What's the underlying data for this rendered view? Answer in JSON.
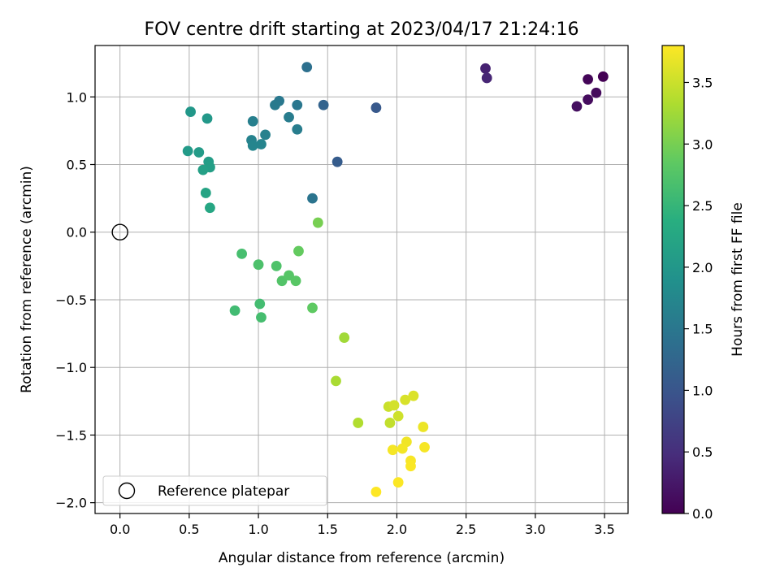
{
  "chart_data": {
    "type": "scatter",
    "title": "FOV centre drift starting at 2023/04/17 21:24:16",
    "xlabel": "Angular distance from reference (arcmin)",
    "ylabel": "Rotation from reference (arcmin)",
    "xlim": [
      -0.18,
      3.67
    ],
    "ylim": [
      -2.08,
      1.38
    ],
    "xticks": [
      0.0,
      0.5,
      1.0,
      1.5,
      2.0,
      2.5,
      3.0,
      3.5
    ],
    "xtick_labels": [
      "0.0",
      "0.5",
      "1.0",
      "1.5",
      "2.0",
      "2.5",
      "3.0",
      "3.5"
    ],
    "yticks": [
      1.0,
      0.5,
      0.0,
      -0.5,
      -1.0,
      -1.5,
      -2.0
    ],
    "ytick_labels": [
      "1.0",
      "0.5",
      "0.0",
      "−0.5",
      "−1.0",
      "−1.5",
      "−2.0"
    ],
    "grid": true,
    "legend": {
      "placement": "lower-left",
      "entries": [
        "Reference platepar"
      ]
    },
    "reference_point": {
      "x": 0.0,
      "y": 0.0,
      "label": "Reference platepar"
    },
    "colorbar": {
      "label": "Hours from first FF file",
      "colormap": "viridis",
      "range": [
        0.0,
        3.8
      ],
      "ticks": [
        0.0,
        0.5,
        1.0,
        1.5,
        2.0,
        2.5,
        3.0,
        3.5
      ],
      "tick_labels": [
        "0.0",
        "0.5",
        "1.0",
        "1.5",
        "2.0",
        "2.5",
        "3.0",
        "3.5"
      ]
    },
    "points": [
      {
        "x": 3.49,
        "y": 1.15,
        "hours": 0.0
      },
      {
        "x": 3.38,
        "y": 1.13,
        "hours": 0.05
      },
      {
        "x": 3.44,
        "y": 1.03,
        "hours": 0.1
      },
      {
        "x": 3.38,
        "y": 0.98,
        "hours": 0.12
      },
      {
        "x": 3.3,
        "y": 0.93,
        "hours": 0.15
      },
      {
        "x": 2.64,
        "y": 1.21,
        "hours": 0.35
      },
      {
        "x": 2.65,
        "y": 1.14,
        "hours": 0.4
      },
      {
        "x": 1.85,
        "y": 0.92,
        "hours": 1.05
      },
      {
        "x": 1.57,
        "y": 0.52,
        "hours": 1.1
      },
      {
        "x": 1.47,
        "y": 0.94,
        "hours": 1.2
      },
      {
        "x": 1.35,
        "y": 1.22,
        "hours": 1.4
      },
      {
        "x": 1.39,
        "y": 0.25,
        "hours": 1.45
      },
      {
        "x": 1.28,
        "y": 0.94,
        "hours": 1.5
      },
      {
        "x": 1.15,
        "y": 0.97,
        "hours": 1.52
      },
      {
        "x": 1.12,
        "y": 0.94,
        "hours": 1.55
      },
      {
        "x": 1.22,
        "y": 0.85,
        "hours": 1.58
      },
      {
        "x": 1.28,
        "y": 0.76,
        "hours": 1.6
      },
      {
        "x": 0.96,
        "y": 0.82,
        "hours": 1.62
      },
      {
        "x": 1.05,
        "y": 0.72,
        "hours": 1.65
      },
      {
        "x": 0.95,
        "y": 0.68,
        "hours": 1.67
      },
      {
        "x": 1.02,
        "y": 0.65,
        "hours": 1.7
      },
      {
        "x": 0.96,
        "y": 0.64,
        "hours": 1.72
      },
      {
        "x": 0.51,
        "y": 0.89,
        "hours": 2.0
      },
      {
        "x": 0.63,
        "y": 0.84,
        "hours": 2.02
      },
      {
        "x": 0.49,
        "y": 0.6,
        "hours": 2.05
      },
      {
        "x": 0.57,
        "y": 0.59,
        "hours": 2.07
      },
      {
        "x": 0.64,
        "y": 0.52,
        "hours": 2.1
      },
      {
        "x": 0.65,
        "y": 0.48,
        "hours": 2.12
      },
      {
        "x": 0.6,
        "y": 0.46,
        "hours": 2.15
      },
      {
        "x": 0.62,
        "y": 0.29,
        "hours": 2.2
      },
      {
        "x": 0.65,
        "y": 0.18,
        "hours": 2.25
      },
      {
        "x": 0.88,
        "y": -0.16,
        "hours": 2.65
      },
      {
        "x": 1.0,
        "y": -0.24,
        "hours": 2.7
      },
      {
        "x": 1.13,
        "y": -0.25,
        "hours": 2.72
      },
      {
        "x": 1.17,
        "y": -0.36,
        "hours": 2.75
      },
      {
        "x": 1.22,
        "y": -0.32,
        "hours": 2.78
      },
      {
        "x": 1.27,
        "y": -0.36,
        "hours": 2.8
      },
      {
        "x": 0.83,
        "y": -0.58,
        "hours": 2.6
      },
      {
        "x": 1.01,
        "y": -0.53,
        "hours": 2.62
      },
      {
        "x": 1.02,
        "y": -0.63,
        "hours": 2.64
      },
      {
        "x": 1.39,
        "y": -0.56,
        "hours": 2.85
      },
      {
        "x": 1.29,
        "y": -0.14,
        "hours": 2.88
      },
      {
        "x": 1.43,
        "y": 0.07,
        "hours": 3.0
      },
      {
        "x": 1.62,
        "y": -0.78,
        "hours": 3.25
      },
      {
        "x": 1.56,
        "y": -1.1,
        "hours": 3.3
      },
      {
        "x": 1.72,
        "y": -1.41,
        "hours": 3.35
      },
      {
        "x": 1.95,
        "y": -1.41,
        "hours": 3.45
      },
      {
        "x": 1.94,
        "y": -1.29,
        "hours": 3.5
      },
      {
        "x": 2.01,
        "y": -1.36,
        "hours": 3.52
      },
      {
        "x": 1.98,
        "y": -1.28,
        "hours": 3.55
      },
      {
        "x": 2.06,
        "y": -1.24,
        "hours": 3.58
      },
      {
        "x": 2.12,
        "y": -1.21,
        "hours": 3.6
      },
      {
        "x": 2.19,
        "y": -1.44,
        "hours": 3.7
      },
      {
        "x": 2.07,
        "y": -1.55,
        "hours": 3.72
      },
      {
        "x": 2.04,
        "y": -1.6,
        "hours": 3.74
      },
      {
        "x": 1.97,
        "y": -1.61,
        "hours": 3.75
      },
      {
        "x": 2.2,
        "y": -1.59,
        "hours": 3.76
      },
      {
        "x": 2.1,
        "y": -1.69,
        "hours": 3.77
      },
      {
        "x": 2.1,
        "y": -1.73,
        "hours": 3.78
      },
      {
        "x": 2.01,
        "y": -1.85,
        "hours": 3.79
      },
      {
        "x": 1.85,
        "y": -1.92,
        "hours": 3.8
      }
    ]
  }
}
